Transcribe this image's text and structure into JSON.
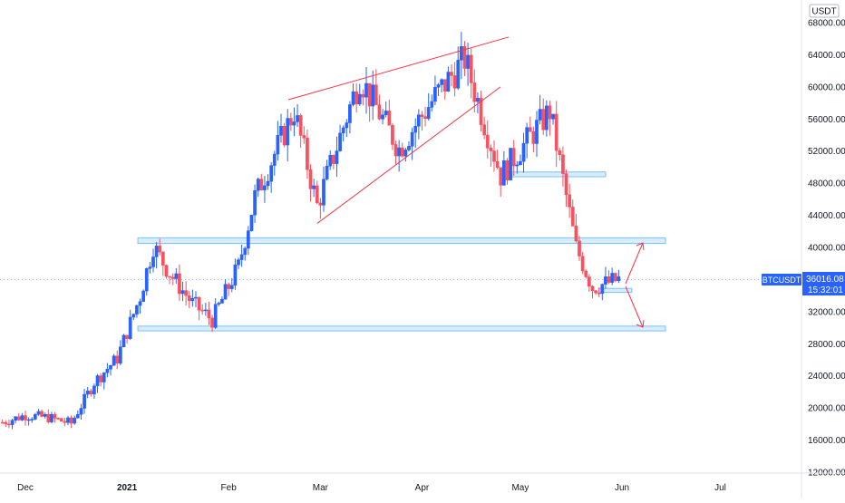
{
  "chart_data": {
    "type": "candlestick",
    "symbol": "BTCUSDT",
    "currency": "USDT",
    "last_price": "36016.08",
    "countdown": "15:32:01",
    "y_ticks": [
      "68000.00",
      "64000.00",
      "60000.00",
      "56000.00",
      "52000.00",
      "48000.00",
      "44000.00",
      "40000.00",
      "36000.00",
      "32000.00",
      "28000.00",
      "24000.00",
      "20000.00",
      "16000.00",
      "12000.00"
    ],
    "x_labels": [
      {
        "label": "Dec",
        "date": "2020-12-01"
      },
      {
        "label": "2021",
        "date": "2021-01-01",
        "bold": true
      },
      {
        "label": "Feb",
        "date": "2021-02-01"
      },
      {
        "label": "Mar",
        "date": "2021-03-01"
      },
      {
        "label": "Apr",
        "date": "2021-04-01"
      },
      {
        "label": "May",
        "date": "2021-05-01"
      },
      {
        "label": "Jun",
        "date": "2021-06-01"
      },
      {
        "label": "Jul",
        "date": "2021-07-01"
      }
    ],
    "ylim": [
      11000,
      69500
    ],
    "xlim": [
      "2020-11-24",
      "2021-07-29"
    ],
    "up_color": "#2962ff",
    "down_color": "#f7525f",
    "weekly_closes": [
      {
        "date": "2020-11-24",
        "close": 18200
      },
      {
        "date": "2020-12-01",
        "close": 19100
      },
      {
        "date": "2020-12-08",
        "close": 18800
      },
      {
        "date": "2020-12-15",
        "close": 18100
      },
      {
        "date": "2020-12-22",
        "close": 23200
      },
      {
        "date": "2020-12-29",
        "close": 26200
      },
      {
        "date": "2021-01-05",
        "close": 33900
      },
      {
        "date": "2021-01-09",
        "close": 40200
      },
      {
        "date": "2021-01-14",
        "close": 36800
      },
      {
        "date": "2021-01-21",
        "close": 33000
      },
      {
        "date": "2021-01-27",
        "close": 31000
      },
      {
        "date": "2021-02-04",
        "close": 37600
      },
      {
        "date": "2021-02-09",
        "close": 46300
      },
      {
        "date": "2021-02-21",
        "close": 57000
      },
      {
        "date": "2021-02-28",
        "close": 45200
      },
      {
        "date": "2021-03-13",
        "close": 61200
      },
      {
        "date": "2021-03-25",
        "close": 52300
      },
      {
        "date": "2021-04-05",
        "close": 58800
      },
      {
        "date": "2021-04-14",
        "close": 63500
      },
      {
        "date": "2021-04-25",
        "close": 49000
      },
      {
        "date": "2021-05-10",
        "close": 57000
      },
      {
        "date": "2021-05-18",
        "close": 40000
      },
      {
        "date": "2021-05-23",
        "close": 35000
      },
      {
        "date": "2021-05-31",
        "close": 36016
      }
    ],
    "annotations": {
      "support_zones": [
        {
          "x_start": "2021-01-01",
          "x_end": "2021-06-05",
          "y_low": 40500,
          "y_high": 41200
        },
        {
          "x_start": "2021-01-01",
          "x_end": "2021-06-05",
          "y_low": 29600,
          "y_high": 30200
        },
        {
          "x_start": "2021-04-27",
          "x_end": "2021-05-27",
          "y_low": 48800,
          "y_high": 49400
        },
        {
          "x_start": "2021-05-25",
          "x_end": "2021-06-04",
          "y_low": 34400,
          "y_high": 34900
        }
      ],
      "wedge_upper": [
        [
          "2021-02-20",
          58400
        ],
        [
          "2021-04-26",
          66200
        ]
      ],
      "wedge_lower": [
        [
          "2021-02-28",
          43000
        ],
        [
          "2021-04-24",
          60000
        ]
      ],
      "arrow_up": [
        [
          "2021-05-31",
          34800
        ],
        [
          "2021-06-03",
          40600
        ]
      ],
      "arrow_down": [
        [
          "2021-05-31",
          35200
        ],
        [
          "2021-06-03",
          29800
        ]
      ]
    }
  }
}
